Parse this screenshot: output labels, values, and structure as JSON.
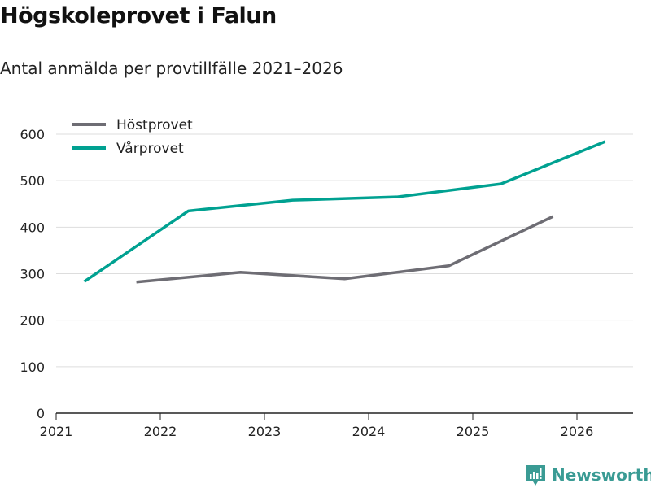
{
  "chart_data": {
    "type": "line",
    "title": "Högskoleprovet i Falun",
    "subtitle": "Antal anmälda per provtillfälle 2021–2026",
    "xlabel": "",
    "ylabel": "",
    "xlim": [
      2021,
      2026.55
    ],
    "ylim": [
      0,
      600
    ],
    "xticks": [
      "2021",
      "2022",
      "2023",
      "2024",
      "2025",
      "2026"
    ],
    "yticks": [
      "0",
      "100",
      "200",
      "300",
      "400",
      "500",
      "600"
    ],
    "grid": true,
    "legend": "top-left",
    "series": [
      {
        "name": "Höstprovet",
        "color": "#6e6d74",
        "x": [
          2021.77,
          2022.77,
          2023.77,
          2024.77,
          2025.77
        ],
        "values": [
          282,
          303,
          289,
          317,
          423
        ]
      },
      {
        "name": "Vårprovet",
        "color": "#00a191",
        "x": [
          2021.27,
          2022.27,
          2023.27,
          2024.27,
          2025.27,
          2026.27
        ],
        "values": [
          283,
          435,
          458,
          465,
          493,
          584
        ]
      }
    ]
  },
  "brand": {
    "name": "Newsworthy",
    "color": "#3a9b94"
  }
}
